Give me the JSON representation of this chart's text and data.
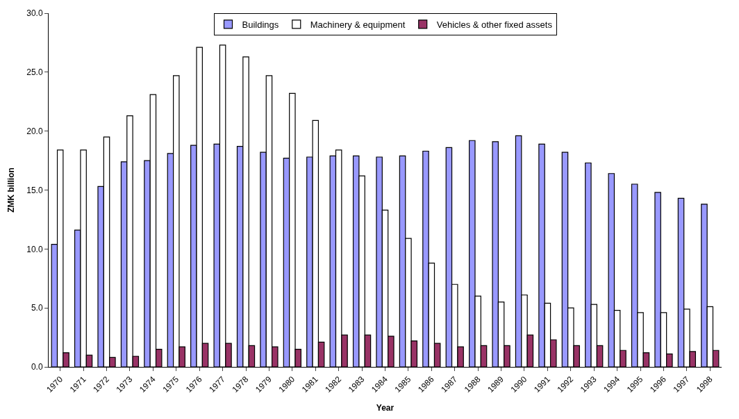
{
  "chart_data": {
    "type": "bar",
    "xlabel": "Year",
    "ylabel": "ZMK billion",
    "categories": [
      "1970",
      "1971",
      "1972",
      "1973",
      "1974",
      "1975",
      "1976",
      "1977",
      "1978",
      "1979",
      "1980",
      "1981",
      "1982",
      "1983",
      "1984",
      "1985",
      "1986",
      "1987",
      "1988",
      "1989",
      "1990",
      "1991",
      "1992",
      "1993",
      "1994",
      "1995",
      "1996",
      "1997",
      "1998"
    ],
    "series": [
      {
        "name": "Buildings",
        "color": "#9999ff",
        "values": [
          10.4,
          11.6,
          15.3,
          17.4,
          17.5,
          18.1,
          18.8,
          18.9,
          18.7,
          18.2,
          17.7,
          17.8,
          17.9,
          17.9,
          17.8,
          17.9,
          18.3,
          18.6,
          19.2,
          19.1,
          19.6,
          18.9,
          18.2,
          17.3,
          16.4,
          15.5,
          14.8,
          14.3,
          13.8
        ]
      },
      {
        "name": "Machinery & equipment",
        "color": "#ffffff",
        "values": [
          18.4,
          18.4,
          19.5,
          21.3,
          23.1,
          24.7,
          27.1,
          27.3,
          26.3,
          24.7,
          23.2,
          20.9,
          18.4,
          16.2,
          13.3,
          10.9,
          8.8,
          7.0,
          6.0,
          5.5,
          6.1,
          5.4,
          5.0,
          5.3,
          4.8,
          4.6,
          4.6,
          4.9,
          5.1
        ]
      },
      {
        "name": "Vehicles & other fixed assets",
        "color": "#993366",
        "values": [
          1.2,
          1.0,
          0.8,
          0.9,
          1.5,
          1.7,
          2.0,
          2.0,
          1.8,
          1.7,
          1.5,
          2.1,
          2.7,
          2.7,
          2.6,
          2.2,
          2.0,
          1.7,
          1.8,
          1.8,
          2.7,
          2.3,
          1.8,
          1.8,
          1.4,
          1.2,
          1.1,
          1.3,
          1.4
        ]
      }
    ],
    "ylim": [
      0,
      30
    ],
    "yticks": [
      {
        "value": 0,
        "label": "0.0"
      },
      {
        "value": 5,
        "label": "5.0"
      },
      {
        "value": 10,
        "label": "10.0"
      },
      {
        "value": 15,
        "label": "15.0"
      },
      {
        "value": 20,
        "label": "20.0"
      },
      {
        "value": 25,
        "label": "25.0"
      },
      {
        "value": 30,
        "label": "30.0"
      }
    ],
    "legend": "top"
  }
}
